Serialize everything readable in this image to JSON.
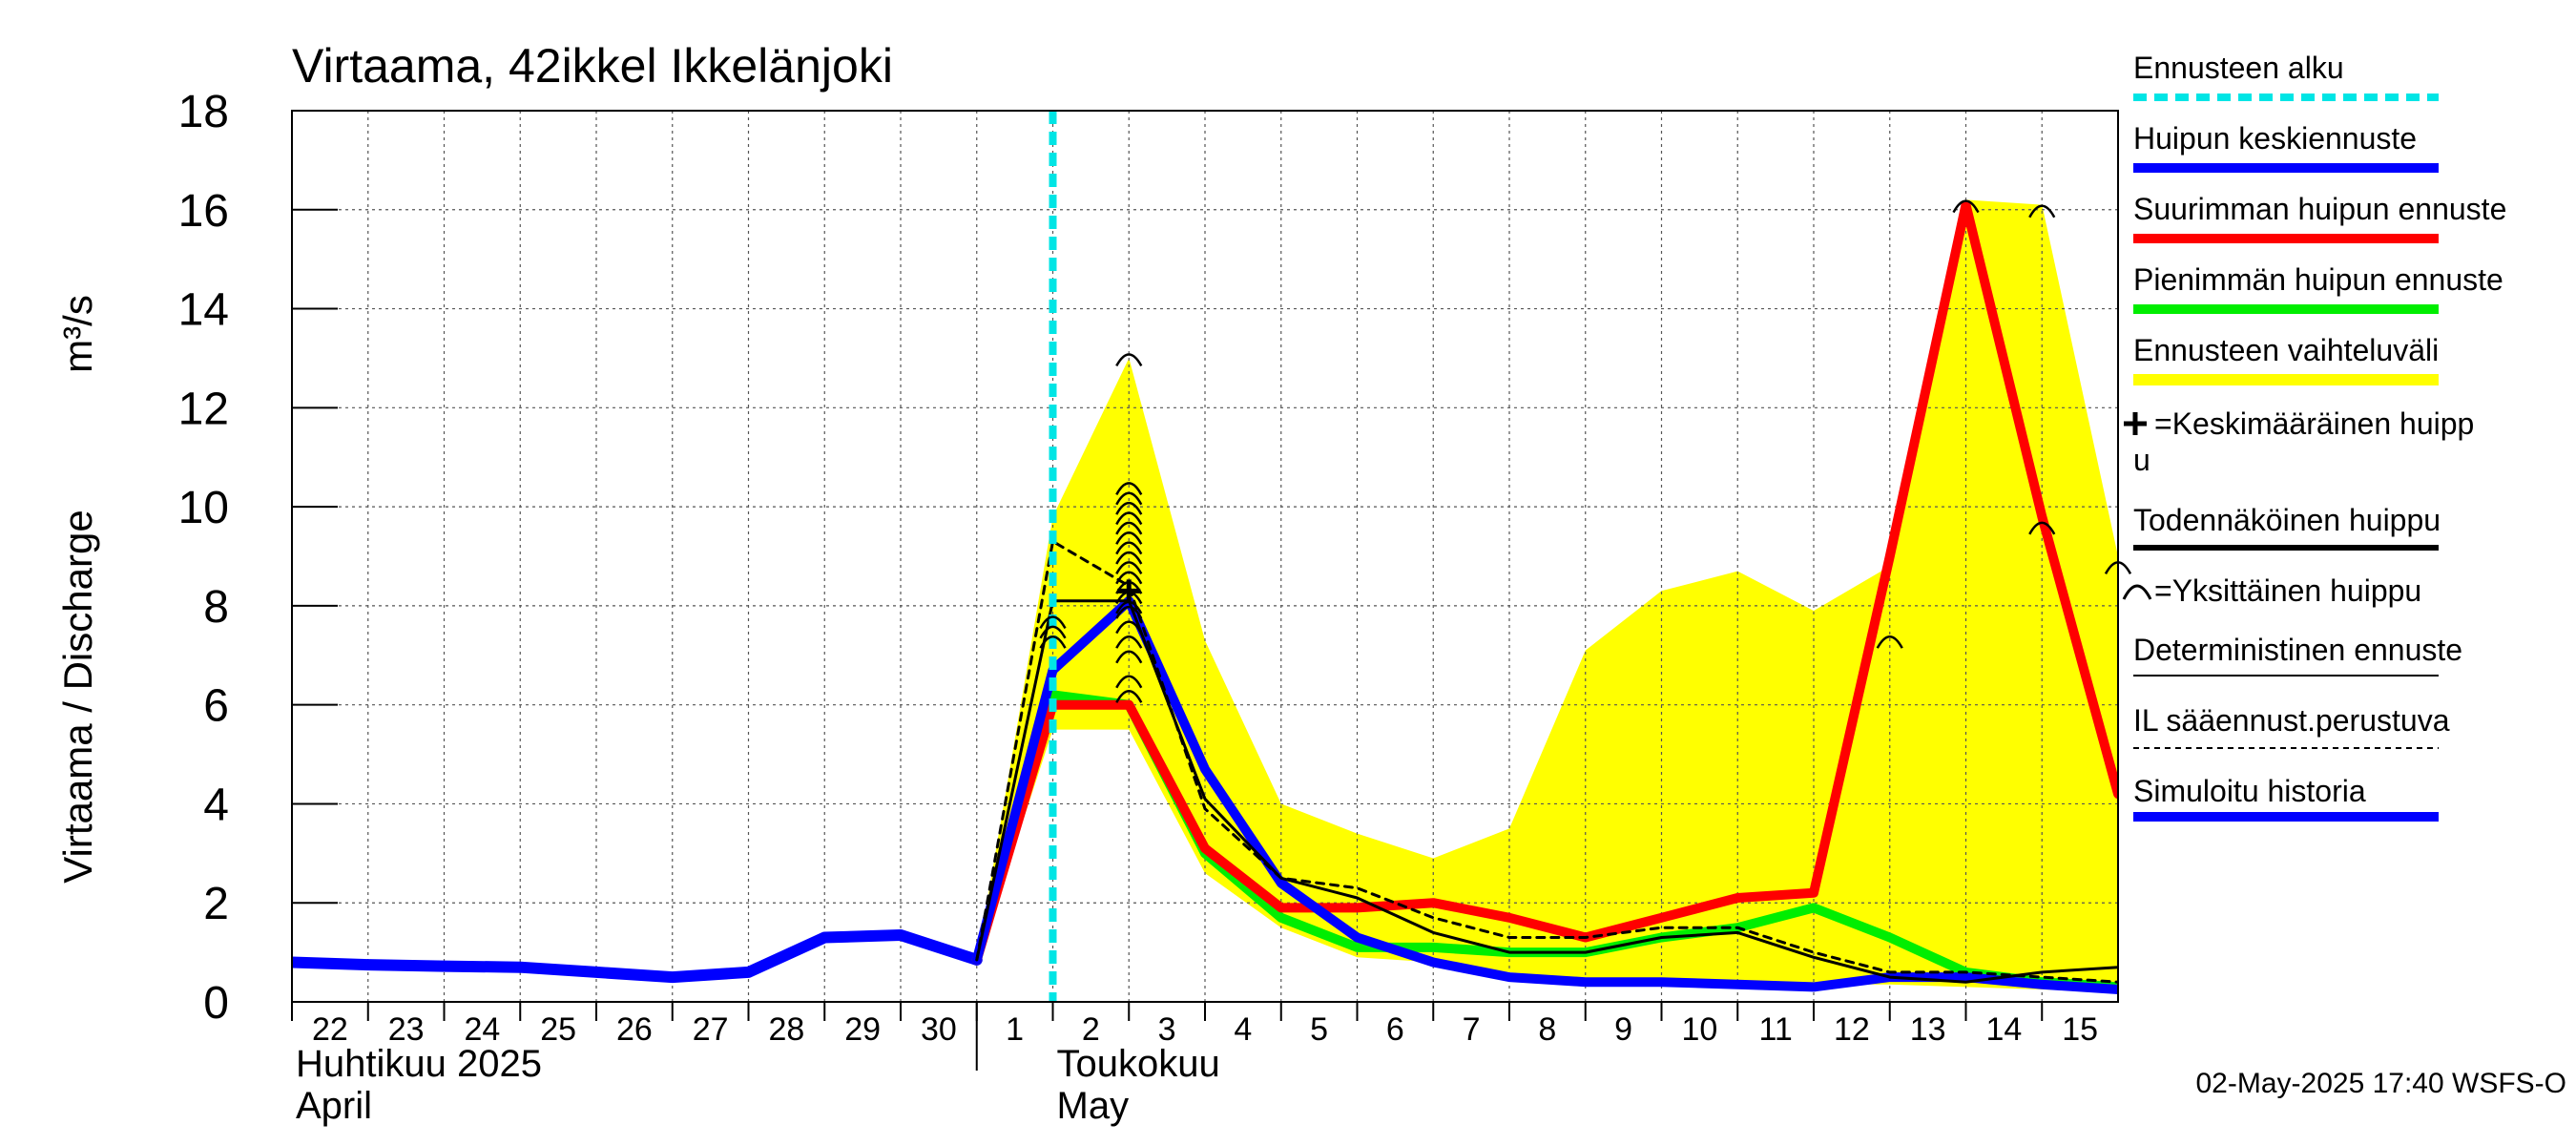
{
  "chart_data": {
    "type": "line",
    "title": "Virtaama, 42ikkel Ikkelänjoki",
    "ylabel": "Virtaama / Discharge",
    "yunit": "m³/s",
    "ylim": [
      0,
      18
    ],
    "yticks": [
      0,
      2,
      4,
      6,
      8,
      10,
      12,
      14,
      16,
      18
    ],
    "xlim": [
      0,
      24
    ],
    "grid": true,
    "x_day_labels": [
      {
        "x": 0.0,
        "label": "22"
      },
      {
        "x": 1.0,
        "label": "23"
      },
      {
        "x": 2.0,
        "label": "24"
      },
      {
        "x": 3.0,
        "label": "25"
      },
      {
        "x": 4.0,
        "label": "26"
      },
      {
        "x": 5.0,
        "label": "27"
      },
      {
        "x": 6.0,
        "label": "28"
      },
      {
        "x": 7.0,
        "label": "29"
      },
      {
        "x": 8.0,
        "label": "30"
      },
      {
        "x": 9.0,
        "label": "1"
      },
      {
        "x": 10.0,
        "label": "2"
      },
      {
        "x": 11.0,
        "label": "3"
      },
      {
        "x": 12.0,
        "label": "4"
      },
      {
        "x": 13.0,
        "label": "5"
      },
      {
        "x": 14.0,
        "label": "6"
      },
      {
        "x": 15.0,
        "label": "7"
      },
      {
        "x": 16.0,
        "label": "8"
      },
      {
        "x": 17.0,
        "label": "9"
      },
      {
        "x": 18.0,
        "label": "10"
      },
      {
        "x": 19.0,
        "label": "11"
      },
      {
        "x": 20.0,
        "label": "12"
      },
      {
        "x": 21.0,
        "label": "13"
      },
      {
        "x": 22.0,
        "label": "14"
      },
      {
        "x": 23.0,
        "label": "15"
      }
    ],
    "month_labels": {
      "april_fi": "Huhtikuu  2025",
      "april_en": "April",
      "may_fi": "Toukokuu",
      "may_en": "May"
    },
    "forecast_start_x": 10.0,
    "series": [
      {
        "name": "Ennusteen vaihteluväli",
        "kind": "band",
        "color": "#ffff00",
        "upper": [
          [
            9.0,
            0.8
          ],
          [
            10.0,
            9.8
          ],
          [
            11.0,
            13.0
          ],
          [
            12.0,
            7.3
          ],
          [
            13.0,
            4.0
          ],
          [
            14.0,
            3.4
          ],
          [
            15.0,
            2.9
          ],
          [
            16.0,
            3.5
          ],
          [
            17.0,
            7.1
          ],
          [
            18.0,
            8.3
          ],
          [
            19.0,
            8.7
          ],
          [
            20.0,
            7.9
          ],
          [
            21.0,
            8.8
          ],
          [
            22.0,
            16.2
          ],
          [
            23.0,
            16.1
          ],
          [
            24.0,
            9.0
          ]
        ],
        "lower": [
          [
            24.0,
            0.2
          ],
          [
            23.0,
            0.25
          ],
          [
            22.0,
            0.3
          ],
          [
            21.0,
            0.35
          ],
          [
            20.0,
            0.35
          ],
          [
            19.0,
            0.4
          ],
          [
            18.0,
            0.4
          ],
          [
            17.0,
            0.45
          ],
          [
            16.0,
            0.6
          ],
          [
            15.0,
            0.8
          ],
          [
            14.0,
            0.9
          ],
          [
            13.0,
            1.5
          ],
          [
            12.0,
            2.6
          ],
          [
            11.0,
            5.5
          ],
          [
            10.0,
            5.5
          ],
          [
            9.0,
            0.8
          ]
        ]
      },
      {
        "name": "Simuloitu historia",
        "kind": "line",
        "color": "#0000ff",
        "points": [
          [
            0.0,
            0.8
          ],
          [
            1.0,
            0.75
          ],
          [
            2.0,
            0.72
          ],
          [
            3.0,
            0.7
          ],
          [
            4.0,
            0.6
          ],
          [
            5.0,
            0.5
          ],
          [
            6.0,
            0.6
          ],
          [
            7.0,
            1.3
          ],
          [
            8.0,
            1.35
          ],
          [
            9.0,
            0.85
          ]
        ]
      },
      {
        "name": "Deterministinen ennuste",
        "kind": "line",
        "color": "#444444",
        "points": [
          [
            8.0,
            1.35
          ],
          [
            9.0,
            0.85
          ]
        ]
      },
      {
        "name": "Pienimmän huipun ennuste",
        "kind": "line",
        "color": "#00ee00",
        "points": [
          [
            9.0,
            0.85
          ],
          [
            10.0,
            6.2
          ],
          [
            11.0,
            6.0
          ],
          [
            12.0,
            3.0
          ],
          [
            13.0,
            1.7
          ],
          [
            14.0,
            1.1
          ],
          [
            15.0,
            1.1
          ],
          [
            16.0,
            1.0
          ],
          [
            17.0,
            1.0
          ],
          [
            18.0,
            1.3
          ],
          [
            19.0,
            1.5
          ],
          [
            20.0,
            1.9
          ],
          [
            21.0,
            1.3
          ],
          [
            22.0,
            0.6
          ],
          [
            23.0,
            0.4
          ],
          [
            24.0,
            0.3
          ]
        ]
      },
      {
        "name": "Suurimman huipun ennuste",
        "kind": "line",
        "color": "#ff0000",
        "points": [
          [
            9.0,
            0.85
          ],
          [
            10.0,
            6.0
          ],
          [
            11.0,
            6.0
          ],
          [
            12.0,
            3.1
          ],
          [
            13.0,
            1.9
          ],
          [
            14.0,
            1.9
          ],
          [
            15.0,
            2.0
          ],
          [
            16.0,
            1.7
          ],
          [
            17.0,
            1.3
          ],
          [
            18.0,
            1.7
          ],
          [
            19.0,
            2.1
          ],
          [
            20.0,
            2.2
          ],
          [
            21.0,
            9.0
          ],
          [
            22.0,
            16.1
          ],
          [
            23.0,
            9.8
          ],
          [
            24.0,
            4.2
          ]
        ]
      },
      {
        "name": "Huipun keskiennuste",
        "kind": "line",
        "color": "#0000ff",
        "points": [
          [
            9.0,
            0.85
          ],
          [
            10.0,
            6.7
          ],
          [
            11.0,
            8.1
          ],
          [
            12.0,
            4.7
          ],
          [
            13.0,
            2.4
          ],
          [
            14.0,
            1.3
          ],
          [
            15.0,
            0.8
          ],
          [
            16.0,
            0.5
          ],
          [
            17.0,
            0.4
          ],
          [
            18.0,
            0.4
          ],
          [
            19.0,
            0.35
          ],
          [
            20.0,
            0.3
          ],
          [
            21.0,
            0.5
          ],
          [
            22.0,
            0.5
          ],
          [
            23.0,
            0.35
          ],
          [
            24.0,
            0.25
          ]
        ]
      },
      {
        "name": "Todennäköinen huippu",
        "kind": "line",
        "color": "#000000",
        "points": [
          [
            9.0,
            0.85
          ],
          [
            10.0,
            8.1
          ],
          [
            11.0,
            8.1
          ],
          [
            12.0,
            4.1
          ],
          [
            13.0,
            2.5
          ],
          [
            14.0,
            2.1
          ],
          [
            15.0,
            1.4
          ],
          [
            16.0,
            1.0
          ],
          [
            17.0,
            1.0
          ],
          [
            18.0,
            1.3
          ],
          [
            19.0,
            1.4
          ],
          [
            20.0,
            0.9
          ],
          [
            21.0,
            0.5
          ],
          [
            22.0,
            0.4
          ],
          [
            23.0,
            0.6
          ],
          [
            24.0,
            0.7
          ]
        ]
      },
      {
        "name": "IL sääennust.perustuva",
        "kind": "dashed",
        "color": "#000000",
        "points": [
          [
            9.0,
            0.85
          ],
          [
            10.0,
            9.3
          ],
          [
            11.0,
            8.4
          ],
          [
            12.0,
            3.9
          ],
          [
            13.0,
            2.5
          ],
          [
            14.0,
            2.3
          ],
          [
            15.0,
            1.7
          ],
          [
            16.0,
            1.3
          ],
          [
            17.0,
            1.3
          ],
          [
            18.0,
            1.5
          ],
          [
            19.0,
            1.5
          ],
          [
            20.0,
            1.0
          ],
          [
            21.0,
            0.6
          ],
          [
            22.0,
            0.6
          ],
          [
            23.0,
            0.5
          ],
          [
            24.0,
            0.4
          ]
        ]
      }
    ],
    "individual_peaks": [
      [
        10.0,
        7.3
      ],
      [
        10.0,
        7.5
      ],
      [
        10.0,
        7.7
      ],
      [
        11.0,
        6.2
      ],
      [
        11.0,
        6.5
      ],
      [
        11.0,
        7.0
      ],
      [
        11.0,
        7.3
      ],
      [
        11.0,
        7.6
      ],
      [
        11.0,
        7.9
      ],
      [
        11.0,
        8.0
      ],
      [
        11.0,
        8.2
      ],
      [
        11.0,
        8.4
      ],
      [
        11.0,
        8.6
      ],
      [
        11.0,
        8.8
      ],
      [
        11.0,
        9.0
      ],
      [
        11.0,
        9.2
      ],
      [
        11.0,
        9.4
      ],
      [
        11.0,
        9.6
      ],
      [
        11.0,
        9.8
      ],
      [
        11.0,
        10.0
      ],
      [
        11.0,
        10.2
      ],
      [
        11.0,
        10.4
      ],
      [
        11.0,
        13.0
      ],
      [
        21.0,
        7.3
      ],
      [
        22.0,
        16.1
      ],
      [
        23.0,
        9.6
      ],
      [
        23.0,
        16.0
      ],
      [
        24.0,
        8.8
      ]
    ],
    "mean_peak": [
      11.0,
      8.3
    ],
    "legend": [
      {
        "label": "Ennusteen alku",
        "style": "dotted",
        "color": "#00e5e5"
      },
      {
        "label": "Huipun keskiennuste",
        "style": "thick",
        "color": "#0000ff"
      },
      {
        "label": "Suurimman huipun ennuste",
        "style": "thick",
        "color": "#ff0000"
      },
      {
        "label": "Pienimmän huipun ennuste",
        "style": "thick",
        "color": "#00ee00"
      },
      {
        "label": "Ennusteen vaihteluväli",
        "style": "band",
        "color": "#ffff00"
      },
      {
        "label": "=Keskimääräinen huipp",
        "label2": "u",
        "style": "none",
        "color": "#000000",
        "symbol": "plus"
      },
      {
        "label": "Todennäköinen huippu",
        "style": "medium",
        "color": "#000000"
      },
      {
        "label": "=Yksittäinen huippu",
        "style": "none",
        "color": "#000000",
        "symbol": "arc"
      },
      {
        "label": "Deterministinen ennuste",
        "style": "thin",
        "color": "#000000"
      },
      {
        "label": "IL sääennust.perustuva",
        "style": "dashed",
        "color": "#000000"
      },
      {
        "label": "Simuloitu historia",
        "style": "thick",
        "color": "#0000ff"
      }
    ]
  },
  "footer": "02-May-2025 17:40 WSFS-O"
}
